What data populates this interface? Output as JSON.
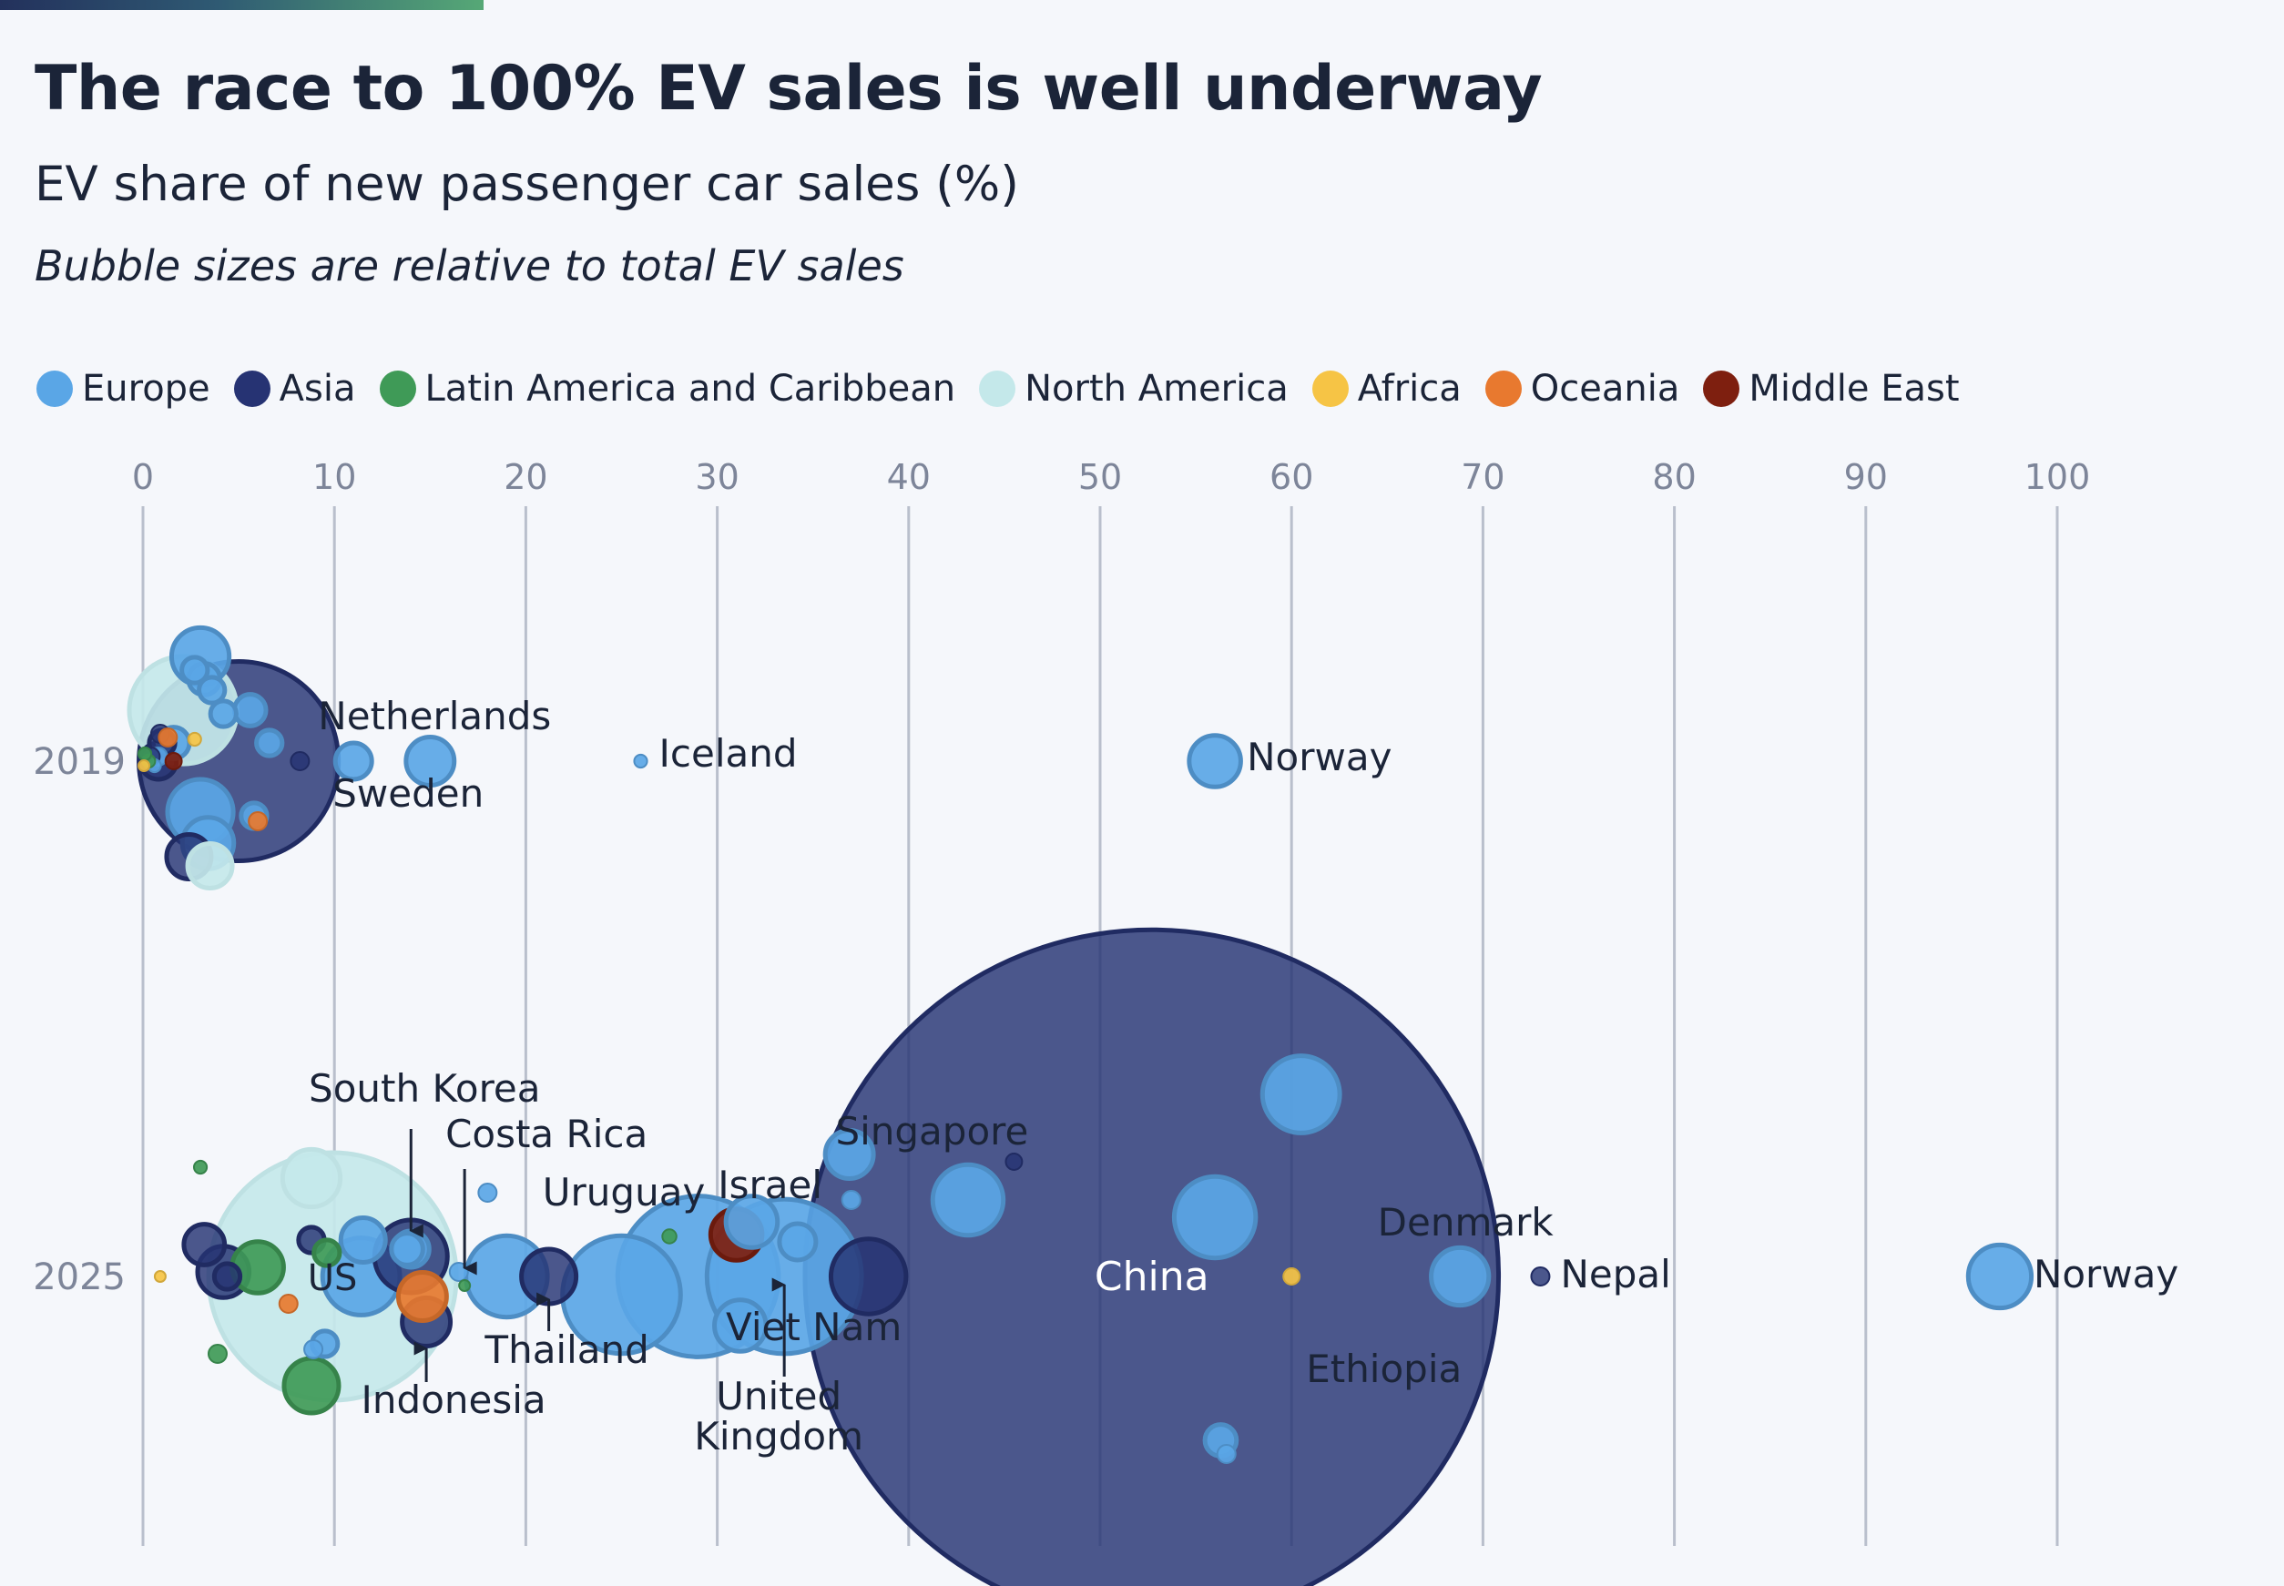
{
  "header": {
    "title": "The race to 100% EV sales is well underway",
    "subtitle": "EV share of new passenger car sales (%)",
    "note": "Bubble sizes are relative to total EV sales"
  },
  "legend": [
    {
      "label": "Europe",
      "color": "#5aa6e6"
    },
    {
      "label": "Asia",
      "color": "#263373"
    },
    {
      "label": "Latin America and Caribbean",
      "color": "#3f9a57"
    },
    {
      "label": "North America",
      "color": "#c4e8ea"
    },
    {
      "label": "Africa",
      "color": "#f6c445"
    },
    {
      "label": "Oceania",
      "color": "#e8792f"
    },
    {
      "label": "Middle East",
      "color": "#7e1f0f"
    }
  ],
  "chart_data": {
    "type": "scatter",
    "x_ticks": [
      0,
      10,
      20,
      30,
      40,
      50,
      60,
      70,
      80,
      90,
      100
    ],
    "xlim": [
      0,
      100
    ],
    "xlabel": "",
    "rows": [
      "2019",
      "2025"
    ],
    "grid": "vertical",
    "legend_position": "top",
    "region_colors": {
      "Europe": "#5aa6e6",
      "Asia": "#263373",
      "Latin America and Caribbean": "#3f9a57",
      "North America": "#c4e8ea",
      "Africa": "#f6c445",
      "Oceania": "#e8792f",
      "Middle East": "#7e1f0f"
    },
    "points": [
      {
        "year": "2019",
        "country": "China",
        "region": "Asia",
        "x": 5.0,
        "size": 1.2
      },
      {
        "year": "2019",
        "country": "US",
        "region": "North America",
        "x": 2.1,
        "size": 0.35
      },
      {
        "year": "2019",
        "country": "Netherlands",
        "region": "Europe",
        "x": 15.0,
        "size": 0.07
      },
      {
        "year": "2019",
        "country": "Sweden",
        "region": "Europe",
        "x": 11.0,
        "size": 0.04
      },
      {
        "year": "2019",
        "country": "Iceland",
        "region": "Europe",
        "x": 26.0,
        "size": 0.005
      },
      {
        "year": "2019",
        "country": "Norway",
        "region": "Europe",
        "x": 56.0,
        "size": 0.08
      },
      {
        "year": "2019",
        "country": "",
        "region": "Europe",
        "x": 3.0,
        "size": 0.1
      },
      {
        "year": "2019",
        "country": "",
        "region": "Europe",
        "x": 3.2,
        "size": 0.03
      },
      {
        "year": "2019",
        "country": "",
        "region": "Europe",
        "x": 2.7,
        "size": 0.02
      },
      {
        "year": "2019",
        "country": "",
        "region": "Europe",
        "x": 3.6,
        "size": 0.02
      },
      {
        "year": "2019",
        "country": "",
        "region": "Europe",
        "x": 5.6,
        "size": 0.03
      },
      {
        "year": "2019",
        "country": "",
        "region": "Europe",
        "x": 4.2,
        "size": 0.02
      },
      {
        "year": "2019",
        "country": "",
        "region": "Europe",
        "x": 6.6,
        "size": 0.02
      },
      {
        "year": "2019",
        "country": "",
        "region": "Europe",
        "x": 3.0,
        "size": 0.13
      },
      {
        "year": "2019",
        "country": "",
        "region": "Europe",
        "x": 3.4,
        "size": 0.08
      },
      {
        "year": "2019",
        "country": "",
        "region": "Europe",
        "x": 1.6,
        "size": 0.03
      },
      {
        "year": "2019",
        "country": "",
        "region": "Europe",
        "x": 0.8,
        "size": 0.01
      },
      {
        "year": "2019",
        "country": "",
        "region": "Europe",
        "x": 0.6,
        "size": 0.005
      },
      {
        "year": "2019",
        "country": "",
        "region": "Europe",
        "x": 5.8,
        "size": 0.02
      },
      {
        "year": "2019",
        "country": "",
        "region": "Asia",
        "x": 0.8,
        "size": 0.04
      },
      {
        "year": "2019",
        "country": "",
        "region": "Asia",
        "x": 2.4,
        "size": 0.06
      },
      {
        "year": "2019",
        "country": "",
        "region": "Asia",
        "x": 8.2,
        "size": 0.01
      },
      {
        "year": "2019",
        "country": "",
        "region": "Asia",
        "x": 1.0,
        "size": 0.02
      },
      {
        "year": "2019",
        "country": "",
        "region": "Asia",
        "x": 0.9,
        "size": 0.01
      },
      {
        "year": "2019",
        "country": "",
        "region": "Asia",
        "x": 0.4,
        "size": 0.01
      },
      {
        "year": "2019",
        "country": "",
        "region": "Latin America and Caribbean",
        "x": 0.3,
        "size": 0.005
      },
      {
        "year": "2019",
        "country": "",
        "region": "Latin America and Caribbean",
        "x": 0.1,
        "size": 0.005
      },
      {
        "year": "2019",
        "country": "",
        "region": "North America",
        "x": 3.5,
        "size": 0.06
      },
      {
        "year": "2019",
        "country": "",
        "region": "Oceania",
        "x": 1.3,
        "size": 0.01
      },
      {
        "year": "2019",
        "country": "",
        "region": "Oceania",
        "x": 6.0,
        "size": 0.01
      },
      {
        "year": "2019",
        "country": "",
        "region": "Africa",
        "x": 2.7,
        "size": 0.005
      },
      {
        "year": "2019",
        "country": "",
        "region": "Africa",
        "x": 0.05,
        "size": 0.003
      },
      {
        "year": "2019",
        "country": "",
        "region": "Middle East",
        "x": 1.6,
        "size": 0.008
      },
      {
        "year": "2025",
        "country": "China",
        "region": "Asia",
        "x": 52.7,
        "size": 14.5
      },
      {
        "year": "2025",
        "country": "US",
        "region": "North America",
        "x": 9.9,
        "size": 1.85
      },
      {
        "year": "2025",
        "country": "South Korea",
        "region": "Asia",
        "x": 14.0,
        "size": 0.16
      },
      {
        "year": "2025",
        "country": "Costa Rica",
        "region": "Latin America and Caribbean",
        "x": 16.8,
        "size": 0.003
      },
      {
        "year": "2025",
        "country": "Uruguay",
        "region": "Latin America and Caribbean",
        "x": 27.5,
        "size": 0.006
      },
      {
        "year": "2025",
        "country": "Israel",
        "region": "Middle East",
        "x": 31.0,
        "size": 0.08
      },
      {
        "year": "2025",
        "country": "Singapore",
        "region": "Asia",
        "x": 45.5,
        "size": 0.008
      },
      {
        "year": "2025",
        "country": "Indonesia",
        "region": "Asia",
        "x": 14.8,
        "size": 0.07
      },
      {
        "year": "2025",
        "country": "Thailand",
        "region": "Asia",
        "x": 21.2,
        "size": 0.09
      },
      {
        "year": "2025",
        "country": "United Kingdom",
        "region": "Europe",
        "x": 33.5,
        "size": 0.72
      },
      {
        "year": "2025",
        "country": "Viet Nam",
        "region": "Asia",
        "x": 37.9,
        "size": 0.17
      },
      {
        "year": "2025",
        "country": "Denmark",
        "region": "Europe",
        "x": 68.8,
        "size": 0.1
      },
      {
        "year": "2025",
        "country": "Nepal",
        "region": "Asia",
        "x": 73.0,
        "size": 0.01
      },
      {
        "year": "2025",
        "country": "Norway",
        "region": "Europe",
        "x": 97.0,
        "size": 0.12
      },
      {
        "year": "2025",
        "country": "Ethiopia",
        "region": "Africa",
        "x": 60.0,
        "size": 0.008
      },
      {
        "year": "2025",
        "country": "",
        "region": "Europe",
        "x": 29.0,
        "size": 0.78
      },
      {
        "year": "2025",
        "country": "",
        "region": "Europe",
        "x": 25.0,
        "size": 0.42
      },
      {
        "year": "2025",
        "country": "",
        "region": "Europe",
        "x": 19.0,
        "size": 0.2
      },
      {
        "year": "2025",
        "country": "",
        "region": "Europe",
        "x": 11.4,
        "size": 0.18
      },
      {
        "year": "2025",
        "country": "",
        "region": "Europe",
        "x": 43.1,
        "size": 0.15
      },
      {
        "year": "2025",
        "country": "",
        "region": "Europe",
        "x": 56.0,
        "size": 0.2
      },
      {
        "year": "2025",
        "country": "",
        "region": "Europe",
        "x": 60.5,
        "size": 0.18
      },
      {
        "year": "2025",
        "country": "",
        "region": "Europe",
        "x": 36.9,
        "size": 0.07
      },
      {
        "year": "2025",
        "country": "",
        "region": "Europe",
        "x": 31.8,
        "size": 0.08
      },
      {
        "year": "2025",
        "country": "",
        "region": "Europe",
        "x": 34.2,
        "size": 0.04
      },
      {
        "year": "2025",
        "country": "",
        "region": "Europe",
        "x": 31.2,
        "size": 0.08
      },
      {
        "year": "2025",
        "country": "",
        "region": "Europe",
        "x": 11.5,
        "size": 0.06
      },
      {
        "year": "2025",
        "country": "",
        "region": "Europe",
        "x": 14.0,
        "size": 0.04
      },
      {
        "year": "2025",
        "country": "",
        "region": "Europe",
        "x": 13.8,
        "size": 0.03
      },
      {
        "year": "2025",
        "country": "",
        "region": "Europe",
        "x": 9.5,
        "size": 0.02
      },
      {
        "year": "2025",
        "country": "",
        "region": "Europe",
        "x": 8.9,
        "size": 0.01
      },
      {
        "year": "2025",
        "country": "",
        "region": "Europe",
        "x": 56.3,
        "size": 0.03
      },
      {
        "year": "2025",
        "country": "",
        "region": "Europe",
        "x": 56.6,
        "size": 0.01
      },
      {
        "year": "2025",
        "country": "",
        "region": "Europe",
        "x": 37.0,
        "size": 0.01
      },
      {
        "year": "2025",
        "country": "",
        "region": "Europe",
        "x": 18.0,
        "size": 0.01
      },
      {
        "year": "2025",
        "country": "",
        "region": "Europe",
        "x": 16.5,
        "size": 0.01
      },
      {
        "year": "2025",
        "country": "",
        "region": "Asia",
        "x": 3.2,
        "size": 0.05
      },
      {
        "year": "2025",
        "country": "",
        "region": "Asia",
        "x": 4.2,
        "size": 0.08
      },
      {
        "year": "2025",
        "country": "",
        "region": "Asia",
        "x": 4.4,
        "size": 0.02
      },
      {
        "year": "2025",
        "country": "",
        "region": "Asia",
        "x": 8.8,
        "size": 0.02
      },
      {
        "year": "2025",
        "country": "",
        "region": "Latin America and Caribbean",
        "x": 6.0,
        "size": 0.08
      },
      {
        "year": "2025",
        "country": "",
        "region": "Latin America and Caribbean",
        "x": 8.8,
        "size": 0.09
      },
      {
        "year": "2025",
        "country": "",
        "region": "Latin America and Caribbean",
        "x": 9.6,
        "size": 0.02
      },
      {
        "year": "2025",
        "country": "",
        "region": "Latin America and Caribbean",
        "x": 3.9,
        "size": 0.01
      },
      {
        "year": "2025",
        "country": "",
        "region": "Latin America and Caribbean",
        "x": 3.0,
        "size": 0.005
      },
      {
        "year": "2025",
        "country": "",
        "region": "North America",
        "x": 8.8,
        "size": 0.1
      },
      {
        "year": "2025",
        "country": "",
        "region": "Oceania",
        "x": 14.6,
        "size": 0.07
      },
      {
        "year": "2025",
        "country": "",
        "region": "Oceania",
        "x": 7.6,
        "size": 0.01
      },
      {
        "year": "2025",
        "country": "",
        "region": "Africa",
        "x": 0.9,
        "size": 0.003
      }
    ]
  }
}
